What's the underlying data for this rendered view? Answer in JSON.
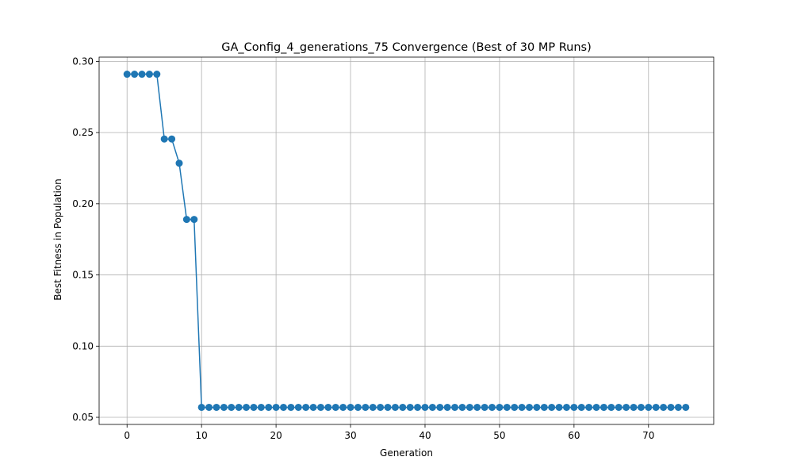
{
  "chart_data": {
    "type": "line",
    "title": "GA_Config_4_generations_75 Convergence (Best of 30 MP Runs)",
    "xlabel": "Generation",
    "ylabel": "Best Fitness in Population",
    "xlim": [
      -3.75,
      78.75
    ],
    "ylim": [
      0.045,
      0.303
    ],
    "x_ticks": [
      0,
      10,
      20,
      30,
      40,
      50,
      60,
      70
    ],
    "y_ticks": [
      0.05,
      0.1,
      0.15,
      0.2,
      0.25,
      0.3
    ],
    "y_tick_labels": [
      "0.05",
      "0.10",
      "0.15",
      "0.20",
      "0.25",
      "0.30"
    ],
    "grid": true,
    "marker": "circle",
    "colors": {
      "line": "#1f77b4",
      "grid": "#b0b0b0",
      "axis": "#000000"
    },
    "x": [
      0,
      1,
      2,
      3,
      4,
      5,
      6,
      7,
      8,
      9,
      10,
      11,
      12,
      13,
      14,
      15,
      16,
      17,
      18,
      19,
      20,
      21,
      22,
      23,
      24,
      25,
      26,
      27,
      28,
      29,
      30,
      31,
      32,
      33,
      34,
      35,
      36,
      37,
      38,
      39,
      40,
      41,
      42,
      43,
      44,
      45,
      46,
      47,
      48,
      49,
      50,
      51,
      52,
      53,
      54,
      55,
      56,
      57,
      58,
      59,
      60,
      61,
      62,
      63,
      64,
      65,
      66,
      67,
      68,
      69,
      70,
      71,
      72,
      73,
      74,
      75
    ],
    "y": [
      0.291,
      0.291,
      0.291,
      0.291,
      0.291,
      0.2455,
      0.2455,
      0.2285,
      0.189,
      0.189,
      0.057,
      0.057,
      0.057,
      0.057,
      0.057,
      0.057,
      0.057,
      0.057,
      0.057,
      0.057,
      0.057,
      0.057,
      0.057,
      0.057,
      0.057,
      0.057,
      0.057,
      0.057,
      0.057,
      0.057,
      0.057,
      0.057,
      0.057,
      0.057,
      0.057,
      0.057,
      0.057,
      0.057,
      0.057,
      0.057,
      0.057,
      0.057,
      0.057,
      0.057,
      0.057,
      0.057,
      0.057,
      0.057,
      0.057,
      0.057,
      0.057,
      0.057,
      0.057,
      0.057,
      0.057,
      0.057,
      0.057,
      0.057,
      0.057,
      0.057,
      0.057,
      0.057,
      0.057,
      0.057,
      0.057,
      0.057,
      0.057,
      0.057,
      0.057,
      0.057,
      0.057,
      0.057,
      0.057,
      0.057,
      0.057,
      0.057
    ]
  }
}
